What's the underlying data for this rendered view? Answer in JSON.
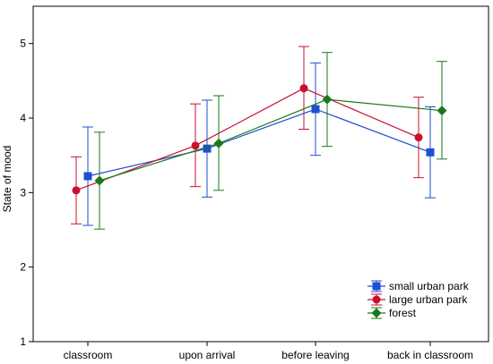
{
  "chart_data": {
    "type": "line",
    "title": "",
    "xlabel": "",
    "ylabel": "State of mood",
    "categories": [
      "classroom",
      "upon arrival",
      "before leaving",
      "back in classroom"
    ],
    "ylim": [
      1,
      5.5
    ],
    "yticks": [
      1,
      2,
      3,
      4,
      5
    ],
    "grid": false,
    "legend_position": "bottom-right",
    "series": [
      {
        "name": "small urban park",
        "color": "#1f4fd1",
        "marker": "square",
        "values": [
          3.22,
          3.59,
          4.12,
          3.54
        ],
        "err_low": [
          2.56,
          2.94,
          3.5,
          2.93
        ],
        "err_high": [
          3.88,
          4.24,
          4.74,
          4.15
        ]
      },
      {
        "name": "large urban park",
        "color": "#c8102e",
        "marker": "circle",
        "values": [
          3.03,
          3.63,
          4.4,
          3.74
        ],
        "err_low": [
          2.58,
          3.08,
          3.85,
          3.2
        ],
        "err_high": [
          3.48,
          4.19,
          4.96,
          4.28
        ]
      },
      {
        "name": "forest",
        "color": "#1a7a1a",
        "marker": "diamond",
        "values": [
          3.16,
          3.66,
          4.25,
          4.1
        ],
        "err_low": [
          2.51,
          3.03,
          3.62,
          3.45
        ],
        "err_high": [
          3.81,
          4.3,
          4.88,
          4.76
        ]
      }
    ]
  }
}
